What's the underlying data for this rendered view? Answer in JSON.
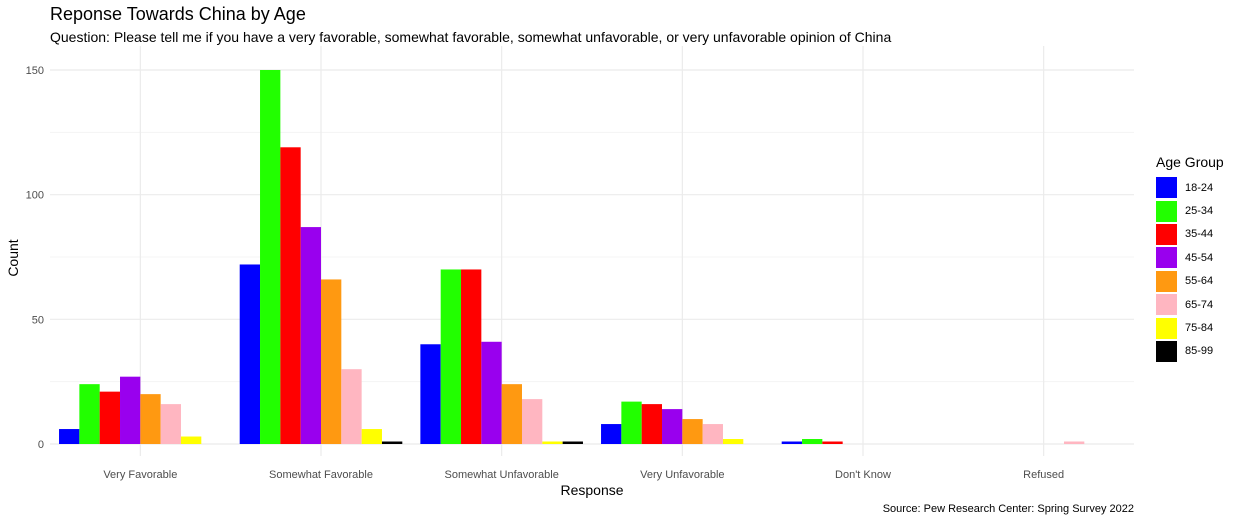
{
  "chart_data": {
    "type": "bar",
    "title": "Reponse Towards China by Age",
    "subtitle": "Question: Please tell me if you have a very favorable, somewhat favorable, somewhat unfavorable, or very unfavorable opinion of China",
    "xlabel": "Response",
    "ylabel": "Count",
    "caption": "Source: Pew Research Center: Spring Survey 2022",
    "legend_title": "Age Group",
    "legend_position": "right",
    "grid": true,
    "ylim": [
      0,
      150
    ],
    "yticks": [
      0,
      50,
      100,
      150
    ],
    "categories": [
      "Very Favorable",
      "Somewhat Favorable",
      "Somewhat Unfavorable",
      "Very Unfavorable",
      "Don't Know",
      "Refused"
    ],
    "series": [
      {
        "name": "18-24",
        "color": "#0000FF",
        "values": [
          6,
          72,
          40,
          8,
          1,
          0
        ]
      },
      {
        "name": "25-34",
        "color": "#22FF00",
        "values": [
          24,
          150,
          70,
          17,
          2,
          0
        ]
      },
      {
        "name": "35-44",
        "color": "#FF0000",
        "values": [
          21,
          119,
          70,
          16,
          1,
          0
        ]
      },
      {
        "name": "45-54",
        "color": "#9900EE",
        "values": [
          27,
          87,
          41,
          14,
          0,
          0
        ]
      },
      {
        "name": "55-64",
        "color": "#FF9911",
        "values": [
          20,
          66,
          24,
          10,
          0,
          0
        ]
      },
      {
        "name": "65-74",
        "color": "#FFB6C1",
        "values": [
          16,
          30,
          18,
          8,
          0,
          1
        ]
      },
      {
        "name": "75-84",
        "color": "#FFFF00",
        "values": [
          3,
          6,
          1,
          2,
          0,
          0
        ]
      },
      {
        "name": "85-99",
        "color": "#000000",
        "values": [
          0,
          1,
          1,
          0,
          0,
          0
        ]
      }
    ]
  }
}
